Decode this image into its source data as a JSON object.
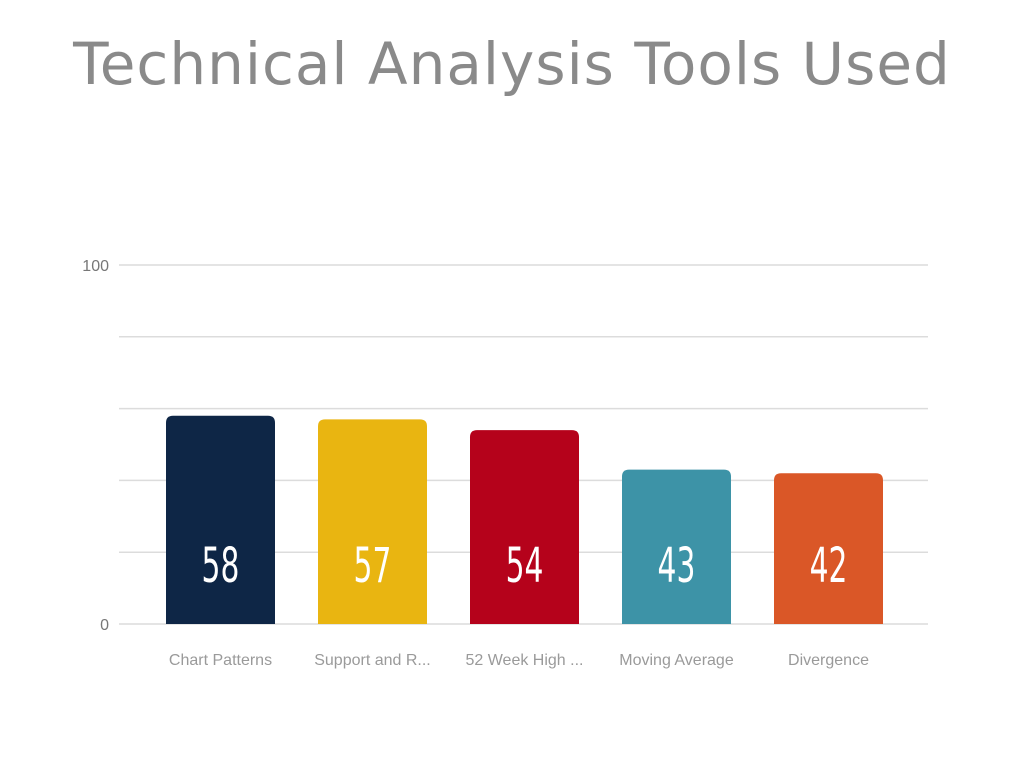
{
  "chart_data": {
    "type": "bar",
    "title": "Technical Analysis Tools Used",
    "categories": [
      "Chart Patterns",
      "Support and R...",
      "52 Week High ...",
      "Moving Average",
      "Divergence"
    ],
    "values": [
      58,
      57,
      54,
      43,
      42
    ],
    "colors": [
      "#0e2646",
      "#e9b511",
      "#b5021b",
      "#3d93a7",
      "#da5727"
    ],
    "ylim": [
      0,
      100
    ],
    "y_tick_labels": [
      "0",
      "100"
    ],
    "gridlines": 6,
    "grid": true,
    "xlabel": "",
    "ylabel": "",
    "data_labels": [
      "58",
      "57",
      "54",
      "43",
      "42"
    ]
  }
}
